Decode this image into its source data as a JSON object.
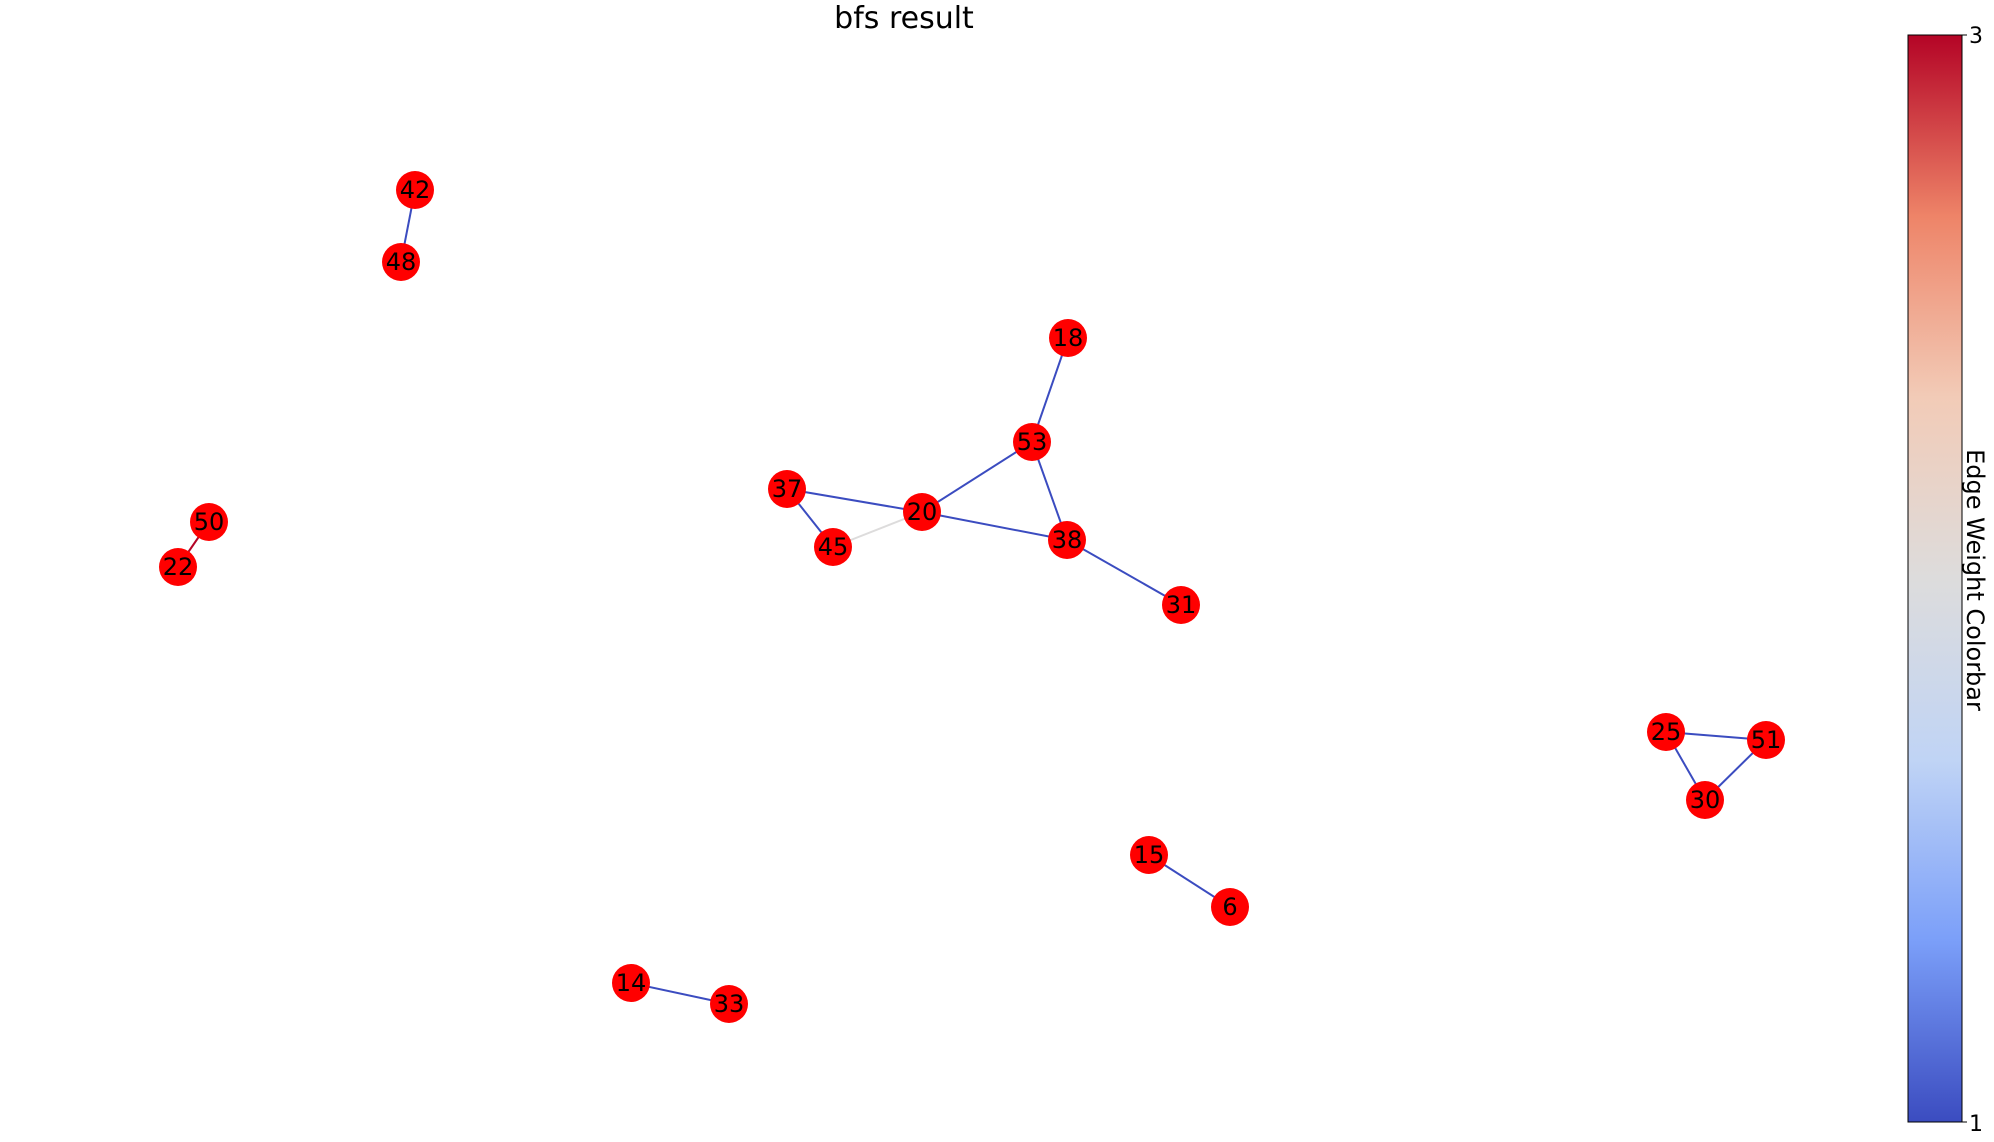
{
  "title": "bfs result",
  "node_color": "#ff0000",
  "nodes": [
    "42",
    "48",
    "18",
    "53",
    "37",
    "20",
    "45",
    "38",
    "31",
    "50",
    "22",
    "25",
    "51",
    "30",
    "15",
    "6",
    "14",
    "33"
  ],
  "edges": [
    {
      "source": "42",
      "target": "48",
      "weight": 1
    },
    {
      "source": "18",
      "target": "53",
      "weight": 1
    },
    {
      "source": "53",
      "target": "20",
      "weight": 1
    },
    {
      "source": "53",
      "target": "38",
      "weight": 1
    },
    {
      "source": "37",
      "target": "20",
      "weight": 1
    },
    {
      "source": "37",
      "target": "45",
      "weight": 1
    },
    {
      "source": "20",
      "target": "45",
      "weight": 2
    },
    {
      "source": "20",
      "target": "38",
      "weight": 1
    },
    {
      "source": "38",
      "target": "31",
      "weight": 1
    },
    {
      "source": "50",
      "target": "22",
      "weight": 3
    },
    {
      "source": "25",
      "target": "51",
      "weight": 1
    },
    {
      "source": "25",
      "target": "30",
      "weight": 1
    },
    {
      "source": "51",
      "target": "30",
      "weight": 1
    },
    {
      "source": "15",
      "target": "6",
      "weight": 1
    },
    {
      "source": "14",
      "target": "33",
      "weight": 1
    }
  ],
  "colorbar": {
    "label": "Edge Weight Colorbar",
    "min": "1",
    "max": "3",
    "colormap": "coolwarm",
    "colors": [
      "#3b4cc0",
      "#7b9ff9",
      "#c0d4f5",
      "#dddcdc",
      "#f2cbb7",
      "#ee8468",
      "#b40426"
    ]
  }
}
